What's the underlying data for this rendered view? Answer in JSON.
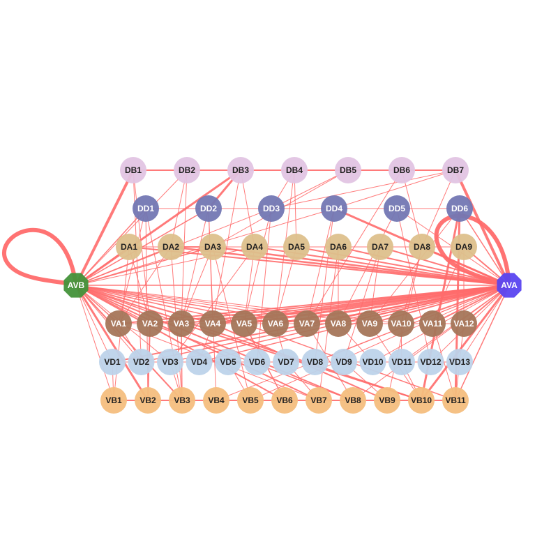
{
  "colors": {
    "edge": "#ff6b6b",
    "DB": "#e2c4e3",
    "DD": "#7377b3",
    "DA": "#ddc08c",
    "VA": "#a5765a",
    "VD": "#bdd3ea",
    "VB": "#f4be7e",
    "AVB": "#43923a",
    "AVA": "#5a45f0",
    "label_dark": "#222222",
    "label_light": "#ffffff"
  },
  "nodes": {
    "AVB": "AVB",
    "AVA": "AVA",
    "DB": [
      "DB1",
      "DB2",
      "DB3",
      "DB4",
      "DB5",
      "DB6",
      "DB7"
    ],
    "DD": [
      "DD1",
      "DD2",
      "DD3",
      "DD4",
      "DD5",
      "DD6"
    ],
    "DA": [
      "DA1",
      "DA2",
      "DA3",
      "DA4",
      "DA5",
      "DA6",
      "DA7",
      "DA8",
      "DA9"
    ],
    "VA": [
      "VA1",
      "VA2",
      "VA3",
      "VA4",
      "VA5",
      "VA6",
      "VA7",
      "VA8",
      "VA9",
      "VA10",
      "VA11",
      "VA12"
    ],
    "VD": [
      "VD1",
      "VD2",
      "VD3",
      "VD4",
      "VD5",
      "VD6",
      "VD7",
      "VD8",
      "VD9",
      "VD10",
      "VD11",
      "VD12",
      "VD13"
    ],
    "VB": [
      "VB1",
      "VB2",
      "VB3",
      "VB4",
      "VB5",
      "VB6",
      "VB7",
      "VB8",
      "VB9",
      "VB10",
      "VB11"
    ]
  },
  "edges": [
    [
      "DB1",
      "DB2",
      2
    ],
    [
      "DB2",
      "DB3",
      2
    ],
    [
      "DB3",
      "DB4",
      2
    ],
    [
      "DB4",
      "DB5",
      2
    ],
    [
      "DB5",
      "DB6",
      2
    ],
    [
      "DB6",
      "DB7",
      2
    ],
    [
      "DD1",
      "DD2",
      1
    ],
    [
      "DD2",
      "DD3",
      1
    ],
    [
      "DD3",
      "DD4",
      1
    ],
    [
      "DD4",
      "DD5",
      1
    ],
    [
      "DD5",
      "DD6",
      1
    ],
    [
      "DA1",
      "DA2",
      1
    ],
    [
      "DA2",
      "DA3",
      2
    ],
    [
      "DA3",
      "DA4",
      1
    ],
    [
      "DA4",
      "DA5",
      1
    ],
    [
      "DA5",
      "DA6",
      1
    ],
    [
      "DA6",
      "DA7",
      1
    ],
    [
      "DA7",
      "DA8",
      1
    ],
    [
      "DA8",
      "DA9",
      1
    ],
    [
      "VA1",
      "VA2",
      1
    ],
    [
      "VA2",
      "VA3",
      1
    ],
    [
      "VA3",
      "VA4",
      1
    ],
    [
      "VA4",
      "VA5",
      1
    ],
    [
      "VA5",
      "VA6",
      1
    ],
    [
      "VA6",
      "VA7",
      1
    ],
    [
      "VA7",
      "VA8",
      1
    ],
    [
      "VA8",
      "VA9",
      1
    ],
    [
      "VA9",
      "VA10",
      1
    ],
    [
      "VA10",
      "VA11",
      1
    ],
    [
      "VA11",
      "VA12",
      1
    ],
    [
      "VD1",
      "VD2",
      1
    ],
    [
      "VD2",
      "VD3",
      1
    ],
    [
      "VD3",
      "VD4",
      1
    ],
    [
      "VD4",
      "VD5",
      1
    ],
    [
      "VD5",
      "VD6",
      1
    ],
    [
      "VD6",
      "VD7",
      1
    ],
    [
      "VD7",
      "VD8",
      1
    ],
    [
      "VD8",
      "VD9",
      1
    ],
    [
      "VD9",
      "VD10",
      1
    ],
    [
      "VD10",
      "VD11",
      1
    ],
    [
      "VD11",
      "VD12",
      1
    ],
    [
      "VD12",
      "VD13",
      1
    ],
    [
      "VB1",
      "VB2",
      2
    ],
    [
      "VB2",
      "VB3",
      2
    ],
    [
      "VB3",
      "VB4",
      2
    ],
    [
      "VB4",
      "VB5",
      2
    ],
    [
      "VB5",
      "VB6",
      2
    ],
    [
      "VB6",
      "VB7",
      2
    ],
    [
      "VB7",
      "VB8",
      2
    ],
    [
      "VB8",
      "VB9",
      2
    ],
    [
      "VB9",
      "VB10",
      2
    ],
    [
      "VB10",
      "VB11",
      2
    ],
    [
      "AVB",
      "AVA",
      1.5
    ],
    [
      "AVB",
      "DB1",
      4
    ],
    [
      "AVB",
      "DB3",
      3
    ],
    [
      "AVB",
      "DB2",
      1
    ],
    [
      "AVB",
      "DD1",
      1.5
    ],
    [
      "AVB",
      "DD2",
      1.5
    ],
    [
      "AVB",
      "DD3",
      1
    ],
    [
      "AVB",
      "DD4",
      1
    ],
    [
      "AVB",
      "DA1",
      1.5
    ],
    [
      "AVB",
      "DA2",
      1.5
    ],
    [
      "AVB",
      "DA3",
      1.5
    ],
    [
      "AVB",
      "DA4",
      1
    ],
    [
      "AVB",
      "VA1",
      1.5
    ],
    [
      "AVB",
      "VA2",
      1.5
    ],
    [
      "AVB",
      "VA3",
      1.5
    ],
    [
      "AVB",
      "VA4",
      2
    ],
    [
      "AVB",
      "VA5",
      1.5
    ],
    [
      "AVB",
      "VA6",
      1.5
    ],
    [
      "AVB",
      "VA7",
      1.5
    ],
    [
      "AVB",
      "VA8",
      1
    ],
    [
      "AVB",
      "VA9",
      1
    ],
    [
      "AVB",
      "VA10",
      1
    ],
    [
      "AVB",
      "VD1",
      1
    ],
    [
      "AVB",
      "VD2",
      1
    ],
    [
      "AVB",
      "VD3",
      1
    ],
    [
      "AVB",
      "VB1",
      1
    ],
    [
      "AVB",
      "VB2",
      3
    ],
    [
      "AVB",
      "VB3",
      2
    ],
    [
      "AVB",
      "VB6",
      2
    ],
    [
      "AVB",
      "VB7",
      2
    ],
    [
      "AVB",
      "VB8",
      2
    ],
    [
      "AVB",
      "VB10",
      2
    ],
    [
      "AVA",
      "DB7",
      4
    ],
    [
      "AVA",
      "DD4",
      3
    ],
    [
      "AVA",
      "DD5",
      1
    ],
    [
      "AVA",
      "DD6",
      1.5
    ],
    [
      "AVA",
      "DA9",
      2
    ],
    [
      "AVA",
      "DA8",
      2
    ],
    [
      "AVA",
      "DA7",
      2
    ],
    [
      "AVA",
      "DA6",
      2
    ],
    [
      "AVA",
      "DA5",
      2
    ],
    [
      "AVA",
      "DA4",
      2
    ],
    [
      "AVA",
      "DA3",
      2.5
    ],
    [
      "AVA",
      "DA2",
      2.5
    ],
    [
      "AVA",
      "DA1",
      2
    ],
    [
      "AVA",
      "VA1",
      2
    ],
    [
      "AVA",
      "VA2",
      2
    ],
    [
      "AVA",
      "VA3",
      2
    ],
    [
      "AVA",
      "VA4",
      4
    ],
    [
      "AVA",
      "VA5",
      3
    ],
    [
      "AVA",
      "VA6",
      3
    ],
    [
      "AVA",
      "VA7",
      2
    ],
    [
      "AVA",
      "VA8",
      2
    ],
    [
      "AVA",
      "VA9",
      2
    ],
    [
      "AVA",
      "VA10",
      2
    ],
    [
      "AVA",
      "VA11",
      2
    ],
    [
      "AVA",
      "VA12",
      2
    ],
    [
      "AVA",
      "VD1",
      2
    ],
    [
      "AVA",
      "VD2",
      1.5
    ],
    [
      "AVA",
      "VD3",
      1.5
    ],
    [
      "AVA",
      "VD4",
      1.5
    ],
    [
      "AVA",
      "VD8",
      1
    ],
    [
      "AVA",
      "VD10",
      1
    ],
    [
      "AVA",
      "VD11",
      1
    ],
    [
      "AVA",
      "VD12",
      1
    ],
    [
      "AVA",
      "VD13",
      1
    ],
    [
      "AVA",
      "VB10",
      3
    ],
    [
      "AVA",
      "VB11",
      1.5
    ],
    [
      "AVA",
      "VB4",
      1
    ],
    [
      "AVA",
      "VB5",
      1
    ],
    [
      "AVA",
      "VB8",
      1
    ],
    [
      "DD6",
      "VB10",
      3
    ],
    [
      "DD6",
      "VB11",
      3
    ],
    [
      "DD4",
      "DB7",
      1
    ],
    [
      "DD3",
      "DB7",
      1
    ],
    [
      "DD2",
      "DB3",
      3
    ],
    [
      "DB1",
      "VA2",
      1
    ],
    [
      "DB1",
      "VD2",
      1
    ],
    [
      "DB2",
      "DA2",
      1
    ],
    [
      "DB2",
      "VA3",
      1
    ],
    [
      "DB3",
      "DA4",
      1
    ],
    [
      "DB3",
      "VA4",
      1
    ],
    [
      "DB4",
      "DD3",
      1
    ],
    [
      "DB4",
      "DA5",
      1
    ],
    [
      "DB4",
      "VA6",
      1
    ],
    [
      "DB5",
      "DD3",
      1
    ],
    [
      "DB5",
      "DA3",
      1
    ],
    [
      "DB6",
      "DA8",
      1
    ],
    [
      "DB6",
      "VA7",
      1
    ],
    [
      "DB7",
      "DA8",
      1
    ],
    [
      "DD1",
      "VA1",
      1
    ],
    [
      "DD1",
      "VB2",
      1
    ],
    [
      "DD1",
      "VB3",
      1
    ],
    [
      "DD2",
      "VA4",
      1
    ],
    [
      "DD2",
      "VA3",
      1
    ],
    [
      "DD2",
      "VB4",
      1
    ],
    [
      "DD3",
      "VA5",
      1
    ],
    [
      "DD3",
      "VD6",
      1
    ],
    [
      "DD4",
      "VA7",
      1
    ],
    [
      "DD4",
      "VD8",
      1
    ],
    [
      "DD5",
      "VA8",
      1
    ],
    [
      "DD5",
      "VD12",
      1
    ],
    [
      "DD6",
      "VA9",
      1
    ],
    [
      "DA1",
      "VA2",
      1
    ],
    [
      "DA1",
      "VB1",
      1
    ],
    [
      "DA2",
      "VB3",
      1
    ],
    [
      "DA2",
      "VA1",
      1
    ],
    [
      "DA3",
      "VA3",
      1
    ],
    [
      "DA3",
      "VB5",
      1
    ],
    [
      "DA4",
      "VA5",
      1
    ],
    [
      "DA4",
      "VD3",
      1
    ],
    [
      "DA5",
      "VA6",
      1
    ],
    [
      "DA6",
      "VA8",
      1
    ],
    [
      "DA6",
      "VB7",
      1
    ],
    [
      "DA7",
      "VA9",
      1
    ],
    [
      "DA7",
      "VD9",
      1
    ],
    [
      "DA8",
      "VA10",
      1
    ],
    [
      "DA8",
      "VB9",
      1
    ],
    [
      "DA9",
      "VA11",
      1
    ],
    [
      "DA9",
      "VA12",
      1
    ],
    [
      "VA1",
      "VD2",
      1
    ],
    [
      "VA2",
      "VB2",
      2
    ],
    [
      "VA3",
      "VB3",
      1.5
    ],
    [
      "VA4",
      "VD4",
      1
    ],
    [
      "VA5",
      "VB6",
      1.5
    ],
    [
      "VA6",
      "VD7",
      1
    ],
    [
      "VA7",
      "VB8",
      1
    ],
    [
      "VA8",
      "VD10",
      1
    ],
    [
      "VA9",
      "VB10",
      1
    ],
    [
      "VA10",
      "VD11",
      1
    ],
    [
      "VA11",
      "VB11",
      1
    ],
    [
      "VA12",
      "VD13",
      1
    ],
    [
      "VD1",
      "VB1",
      1
    ],
    [
      "VD3",
      "VB3",
      1
    ],
    [
      "VD5",
      "VB5",
      1
    ],
    [
      "VD7",
      "VB7",
      1
    ],
    [
      "VD9",
      "VB9",
      1
    ],
    [
      "VD11",
      "VB10",
      1
    ],
    [
      "VD13",
      "VB11",
      1
    ],
    [
      "VA3",
      "VB10",
      2
    ],
    [
      "VA4",
      "VB9",
      2
    ],
    [
      "VA5",
      "VB11",
      1.5
    ],
    [
      "VA2",
      "VB8",
      1.5
    ],
    [
      "VA1",
      "VB7",
      1
    ]
  ],
  "self_loops": [
    {
      "node": "AVB",
      "width": 6
    },
    {
      "node": "AVA",
      "width": 6
    }
  ]
}
